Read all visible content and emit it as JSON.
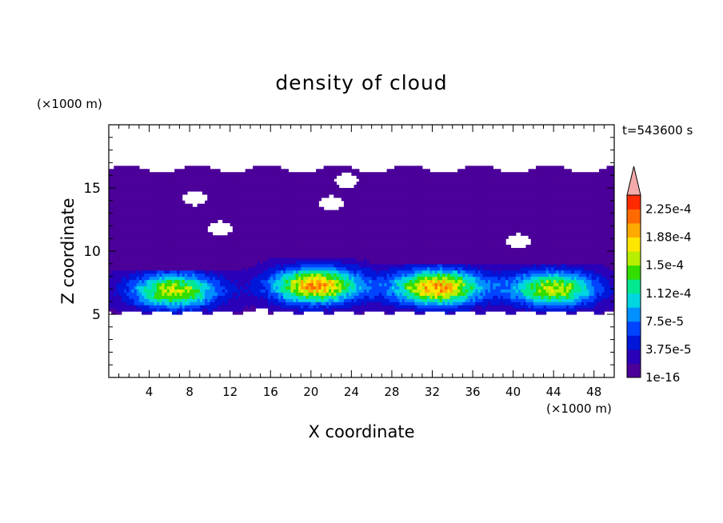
{
  "chart_data": {
    "type": "heatmap",
    "title": "density of cloud",
    "time_label": "t=543600 s",
    "xlabel": "X coordinate",
    "ylabel": "Z coordinate",
    "x_unit": "(×1000 m)",
    "y_unit": "(×1000 m)",
    "xlim": [
      0,
      50
    ],
    "ylim": [
      0,
      20
    ],
    "x_ticks": [
      4,
      8,
      12,
      16,
      20,
      24,
      28,
      32,
      36,
      40,
      44,
      48
    ],
    "y_ticks": [
      5,
      10,
      15
    ],
    "x_tick_labels": [
      "4",
      "8",
      "12",
      "16",
      "20",
      "24",
      "28",
      "32",
      "36",
      "40",
      "44",
      "48"
    ],
    "y_tick_labels": [
      "5",
      "10",
      "15"
    ],
    "colorbar": {
      "levels": [
        1e-16,
        1.875e-05,
        3.75e-05,
        5.625e-05,
        7.5e-05,
        9.375e-05,
        0.0001125,
        0.00013125,
        0.00015,
        0.00016875,
        0.0001875,
        0.00020625,
        0.000225,
        0.00024375
      ],
      "labels": [
        "1e-16",
        "3.75e-5",
        "7.5e-5",
        "1.12e-4",
        "1.5e-4",
        "1.88e-4",
        "2.25e-4"
      ],
      "colors": [
        "#4b0099",
        "#2a00b8",
        "#0016d8",
        "#0044ff",
        "#0090ff",
        "#00d6e0",
        "#00e890",
        "#33dd00",
        "#b8ee00",
        "#ffe600",
        "#ffaa00",
        "#ff6a00",
        "#ff2a00",
        "#f4aaaa"
      ],
      "extend": "max"
    },
    "bands": {
      "cloud_base_km": 5.2,
      "cloud_top_km": 16.5,
      "upper_layer_km": [
        10,
        16.5
      ],
      "lower_layer_km": [
        5.2,
        10
      ]
    },
    "cells": [
      {
        "x_center": 6.5,
        "z_top": 8.2,
        "peak": 0.00015
      },
      {
        "x_center": 20.5,
        "z_top": 9.0,
        "peak": 0.000188
      },
      {
        "x_center": 32.5,
        "z_top": 8.7,
        "peak": 0.000188
      },
      {
        "x_center": 44.0,
        "z_top": 8.5,
        "peak": 0.00015
      }
    ]
  }
}
